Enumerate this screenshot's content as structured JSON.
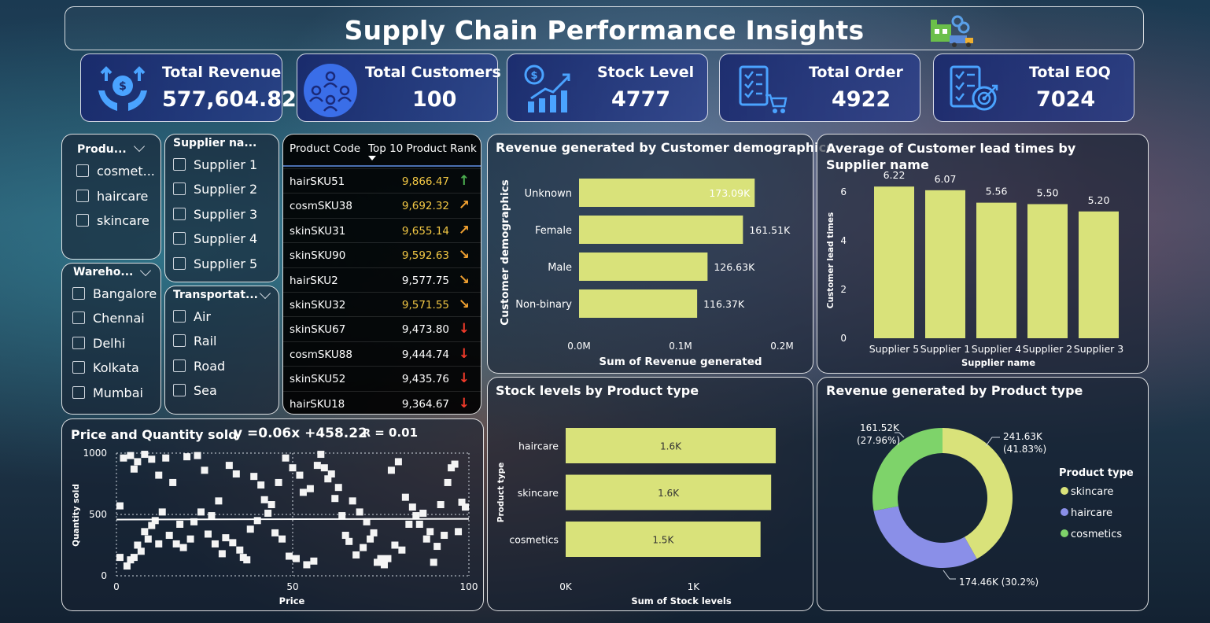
{
  "header": {
    "title": "Supply Chain Performance Insights",
    "logo_icon": "supply-chain-icon"
  },
  "kpis": [
    {
      "label": "Total Revenue",
      "value": "577,604.82",
      "icon": "money-bag-hands-icon"
    },
    {
      "label": "Total Customers",
      "value": "100",
      "icon": "people-circle-icon"
    },
    {
      "label": "Stock Level",
      "value": "4777",
      "icon": "dollar-growth-chart-icon"
    },
    {
      "label": "Total Order",
      "value": "4922",
      "icon": "checklist-cart-icon"
    },
    {
      "label": "Total EOQ",
      "value": "7024",
      "icon": "checklist-target-icon"
    }
  ],
  "slicers": {
    "product": {
      "title": "Produ...",
      "options": [
        "cosmet...",
        "haircare",
        "skincare"
      ]
    },
    "supplier": {
      "title": "Supplier na...",
      "options": [
        "Supplier 1",
        "Supplier 2",
        "Supplier 3",
        "Supplier 4",
        "Supplier 5"
      ]
    },
    "warehouse": {
      "title": "Wareho...",
      "options": [
        "Bangalore",
        "Chennai",
        "Delhi",
        "Kolkata",
        "Mumbai"
      ]
    },
    "transport": {
      "title": "Transportat...",
      "options": [
        "Air",
        "Rail",
        "Road",
        "Sea"
      ]
    }
  },
  "rank_table": {
    "headers": [
      "Product Code",
      "Top 10 Product Rank"
    ],
    "rows": [
      {
        "code": "hairSKU51",
        "rank": "9,866.47",
        "trend": "up",
        "color": "#f2c744"
      },
      {
        "code": "cosmSKU38",
        "rank": "9,692.32",
        "trend": "up-right",
        "color": "#f2c744"
      },
      {
        "code": "skinSKU31",
        "rank": "9,655.14",
        "trend": "up-right",
        "color": "#f2c744"
      },
      {
        "code": "skinSKU90",
        "rank": "9,592.63",
        "trend": "down-right",
        "color": "#f2c744"
      },
      {
        "code": "hairSKU2",
        "rank": "9,577.75",
        "trend": "down-right",
        "color": "#ffffff"
      },
      {
        "code": "skinSKU32",
        "rank": "9,571.55",
        "trend": "down-right",
        "color": "#f2c744"
      },
      {
        "code": "skinSKU67",
        "rank": "9,473.80",
        "trend": "down",
        "color": "#ffffff"
      },
      {
        "code": "cosmSKU88",
        "rank": "9,444.74",
        "trend": "down",
        "color": "#ffffff"
      },
      {
        "code": "skinSKU52",
        "rank": "9,435.76",
        "trend": "down",
        "color": "#ffffff"
      },
      {
        "code": "hairSKU18",
        "rank": "9,364.67",
        "trend": "down",
        "color": "#ffffff"
      }
    ],
    "arrow_colors": {
      "up": "#4caf50",
      "up-right": "#f0a030",
      "down-right": "#f0a030",
      "down": "#f03a2a"
    }
  },
  "colors": {
    "bar": "#d9e27a",
    "donut_skincare": "#d9e27a",
    "donut_haircare": "#8a8fe8",
    "donut_cosmetics": "#7ed36a"
  },
  "chart_data": [
    {
      "id": "demographics",
      "type": "bar",
      "orientation": "horizontal",
      "title": "Revenue generated by Customer demographics",
      "xlabel": "Sum of Revenue generated",
      "ylabel": "Customer demographics",
      "categories": [
        "Unknown",
        "Female",
        "Male",
        "Non-binary"
      ],
      "values": [
        173090,
        161510,
        126630,
        116370
      ],
      "labels": [
        "173.09K",
        "161.51K",
        "126.63K",
        "116.37K"
      ],
      "xticks": [
        "0.0M",
        "0.1M",
        "0.2M"
      ],
      "xlim": [
        0,
        200000
      ]
    },
    {
      "id": "lead_times",
      "type": "bar",
      "title": "Average of Customer lead times by Supplier name",
      "xlabel": "Supplier name",
      "ylabel": "Customer lead times",
      "categories": [
        "Supplier 5",
        "Supplier 1",
        "Supplier 4",
        "Supplier 2",
        "Supplier 3"
      ],
      "values": [
        6.22,
        6.07,
        5.56,
        5.5,
        5.2
      ],
      "labels": [
        "6.22",
        "6.07",
        "5.56",
        "5.50",
        "5.20"
      ],
      "yticks": [
        "0",
        "2",
        "4",
        "6"
      ],
      "ylim": [
        0,
        7
      ]
    },
    {
      "id": "stock_by_type",
      "type": "bar",
      "orientation": "horizontal",
      "title": "Stock levels by Product type",
      "xlabel": "Sum of Stock levels",
      "ylabel": "Product type",
      "categories": [
        "haircare",
        "skincare",
        "cosmetics"
      ],
      "values": [
        1644,
        1608,
        1525
      ],
      "labels": [
        "1.6K",
        "1.6K",
        "1.5K"
      ],
      "xticks": [
        "0K",
        "1K"
      ],
      "xlim": [
        0,
        1650
      ]
    },
    {
      "id": "revenue_by_type",
      "type": "pie",
      "donut": true,
      "title": "Revenue generated by Product type",
      "legend_title": "Product type",
      "slices": [
        {
          "name": "skincare",
          "value": 241630,
          "label": "241.63K",
          "pct": "(41.83%)"
        },
        {
          "name": "haircare",
          "value": 174460,
          "label": "174.46K (30.2%)",
          "pct": ""
        },
        {
          "name": "cosmetics",
          "value": 161520,
          "label": "161.52K",
          "pct": "(27.96%)"
        }
      ],
      "legend_placement": "right"
    },
    {
      "id": "price_qty",
      "type": "scatter",
      "title": "Price and Quantity sold",
      "equation": "y =0.06x +458.22",
      "r_label": "R",
      "r_value": "= 0.01",
      "xlabel": "Price",
      "ylabel": "Quantity sold",
      "xticks": [
        "0",
        "50",
        "100"
      ],
      "yticks": [
        "0",
        "500",
        "1000"
      ],
      "xlim": [
        0,
        100
      ],
      "ylim": [
        0,
        1000
      ],
      "trend": {
        "slope": 0.06,
        "intercept": 458.22
      },
      "points": [
        [
          2,
          960
        ],
        [
          4,
          980
        ],
        [
          5,
          870
        ],
        [
          6,
          930
        ],
        [
          8,
          990
        ],
        [
          10,
          950
        ],
        [
          12,
          820
        ],
        [
          14,
          960
        ],
        [
          16,
          760
        ],
        [
          13,
          520
        ],
        [
          11,
          450
        ],
        [
          9,
          300
        ],
        [
          7,
          200
        ],
        [
          5,
          150
        ],
        [
          3,
          80
        ],
        [
          4,
          130
        ],
        [
          6,
          250
        ],
        [
          8,
          360
        ],
        [
          10,
          410
        ],
        [
          12,
          260
        ],
        [
          15,
          330
        ],
        [
          17,
          260
        ],
        [
          19,
          230
        ],
        [
          21,
          300
        ],
        [
          22,
          440
        ],
        [
          24,
          520
        ],
        [
          26,
          340
        ],
        [
          28,
          260
        ],
        [
          30,
          180
        ],
        [
          31,
          310
        ],
        [
          33,
          270
        ],
        [
          35,
          210
        ],
        [
          36,
          150
        ],
        [
          37,
          130
        ],
        [
          38,
          380
        ],
        [
          40,
          450
        ],
        [
          42,
          620
        ],
        [
          44,
          580
        ],
        [
          46,
          760
        ],
        [
          48,
          960
        ],
        [
          50,
          880
        ],
        [
          52,
          820
        ],
        [
          53,
          680
        ],
        [
          55,
          710
        ],
        [
          57,
          900
        ],
        [
          58,
          990
        ],
        [
          60,
          790
        ],
        [
          62,
          630
        ],
        [
          64,
          490
        ],
        [
          65,
          330
        ],
        [
          66,
          280
        ],
        [
          68,
          170
        ],
        [
          70,
          230
        ],
        [
          72,
          300
        ],
        [
          74,
          110
        ],
        [
          75,
          140
        ],
        [
          76,
          90
        ],
        [
          78,
          860
        ],
        [
          80,
          930
        ],
        [
          82,
          640
        ],
        [
          84,
          560
        ],
        [
          85,
          490
        ],
        [
          86,
          420
        ],
        [
          88,
          300
        ],
        [
          90,
          110
        ],
        [
          91,
          240
        ],
        [
          92,
          580
        ],
        [
          94,
          760
        ],
        [
          95,
          880
        ],
        [
          96,
          910
        ],
        [
          98,
          600
        ],
        [
          99,
          560
        ],
        [
          97,
          360
        ],
        [
          93,
          330
        ],
        [
          89,
          360
        ],
        [
          87,
          510
        ],
        [
          83,
          420
        ],
        [
          81,
          210
        ],
        [
          79,
          250
        ],
        [
          77,
          140
        ],
        [
          73,
          350
        ],
        [
          71,
          440
        ],
        [
          69,
          520
        ],
        [
          67,
          610
        ],
        [
          63,
          720
        ],
        [
          61,
          830
        ],
        [
          59,
          880
        ],
        [
          56,
          120
        ],
        [
          54,
          90
        ],
        [
          51,
          140
        ],
        [
          49,
          160
        ],
        [
          47,
          300
        ],
        [
          45,
          350
        ],
        [
          43,
          510
        ],
        [
          41,
          740
        ],
        [
          39,
          810
        ],
        [
          34,
          830
        ],
        [
          32,
          900
        ],
        [
          29,
          610
        ],
        [
          27,
          490
        ],
        [
          25,
          860
        ],
        [
          23,
          980
        ],
        [
          20,
          970
        ],
        [
          18,
          420
        ],
        [
          1,
          150
        ],
        [
          1,
          570
        ]
      ]
    }
  ]
}
